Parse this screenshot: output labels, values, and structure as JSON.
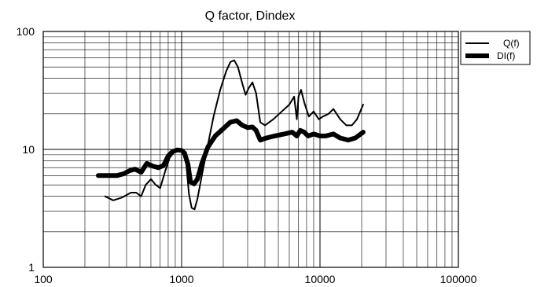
{
  "chart_data": {
    "type": "line",
    "title": "Q factor, Dindex",
    "xlabel": "",
    "ylabel": "",
    "xscale": "log",
    "yscale": "log",
    "xlim": [
      100,
      100000
    ],
    "ylim": [
      1,
      100
    ],
    "x_ticks": [
      100,
      1000,
      10000,
      100000
    ],
    "x_tick_labels": [
      "100",
      "1000",
      "10000",
      "100000"
    ],
    "y_ticks": [
      1,
      10,
      100
    ],
    "y_tick_labels": [
      "1",
      "10",
      "100"
    ],
    "grid": true,
    "legend_position": "top-right",
    "line_color": "#000000",
    "series": [
      {
        "name": "Q(f)",
        "line_weight": "thin",
        "points": [
          [
            280,
            4.0
          ],
          [
            320,
            3.7
          ],
          [
            370,
            3.9
          ],
          [
            430,
            4.3
          ],
          [
            470,
            4.3
          ],
          [
            510,
            4.0
          ],
          [
            550,
            5.0
          ],
          [
            600,
            5.6
          ],
          [
            650,
            5.0
          ],
          [
            700,
            4.7
          ],
          [
            760,
            6.5
          ],
          [
            820,
            8.5
          ],
          [
            900,
            9.7
          ],
          [
            970,
            9.9
          ],
          [
            1020,
            9.6
          ],
          [
            1080,
            7.5
          ],
          [
            1130,
            4.2
          ],
          [
            1180,
            3.2
          ],
          [
            1240,
            3.1
          ],
          [
            1300,
            3.8
          ],
          [
            1400,
            6.0
          ],
          [
            1550,
            11.0
          ],
          [
            1700,
            19.0
          ],
          [
            1900,
            32.0
          ],
          [
            2100,
            46.0
          ],
          [
            2250,
            55.0
          ],
          [
            2400,
            57.0
          ],
          [
            2550,
            50.0
          ],
          [
            2750,
            36.0
          ],
          [
            2900,
            29.0
          ],
          [
            3050,
            33.0
          ],
          [
            3250,
            37.0
          ],
          [
            3450,
            30.0
          ],
          [
            3700,
            17.0
          ],
          [
            4000,
            16.0
          ],
          [
            4600,
            18.0
          ],
          [
            5300,
            21.0
          ],
          [
            6000,
            24.0
          ],
          [
            6500,
            28.0
          ],
          [
            6800,
            18.0
          ],
          [
            7000,
            28.0
          ],
          [
            7300,
            32.0
          ],
          [
            7700,
            25.0
          ],
          [
            8300,
            19.0
          ],
          [
            9000,
            21.0
          ],
          [
            9800,
            18.0
          ],
          [
            10500,
            19.0
          ],
          [
            11500,
            20.0
          ],
          [
            12500,
            22.0
          ],
          [
            14000,
            18.0
          ],
          [
            15500,
            16.0
          ],
          [
            17000,
            16.0
          ],
          [
            18500,
            18.0
          ],
          [
            20500,
            24.0
          ]
        ]
      },
      {
        "name": "DI(f)",
        "line_weight": "thick",
        "points": [
          [
            250,
            6.0
          ],
          [
            300,
            6.0
          ],
          [
            340,
            6.0
          ],
          [
            380,
            6.2
          ],
          [
            420,
            6.6
          ],
          [
            460,
            6.8
          ],
          [
            510,
            6.4
          ],
          [
            560,
            7.6
          ],
          [
            620,
            7.2
          ],
          [
            680,
            7.0
          ],
          [
            740,
            7.3
          ],
          [
            800,
            8.8
          ],
          [
            860,
            9.6
          ],
          [
            930,
            9.9
          ],
          [
            1000,
            9.8
          ],
          [
            1050,
            9.3
          ],
          [
            1110,
            7.5
          ],
          [
            1160,
            5.3
          ],
          [
            1230,
            5.1
          ],
          [
            1300,
            5.6
          ],
          [
            1400,
            7.6
          ],
          [
            1550,
            10.5
          ],
          [
            1750,
            13.0
          ],
          [
            2000,
            15.0
          ],
          [
            2250,
            17.0
          ],
          [
            2500,
            17.5
          ],
          [
            2750,
            16.0
          ],
          [
            3000,
            15.3
          ],
          [
            3250,
            15.5
          ],
          [
            3450,
            14.5
          ],
          [
            3700,
            12.0
          ],
          [
            4100,
            12.5
          ],
          [
            4700,
            13.0
          ],
          [
            5500,
            13.5
          ],
          [
            6300,
            14.0
          ],
          [
            6800,
            13.0
          ],
          [
            7200,
            14.5
          ],
          [
            7700,
            14.0
          ],
          [
            8200,
            13.0
          ],
          [
            9000,
            13.5
          ],
          [
            10000,
            13.0
          ],
          [
            11000,
            13.0
          ],
          [
            12500,
            13.5
          ],
          [
            14000,
            12.5
          ],
          [
            16000,
            12.0
          ],
          [
            18000,
            12.5
          ],
          [
            20500,
            14.0
          ]
        ]
      }
    ]
  }
}
